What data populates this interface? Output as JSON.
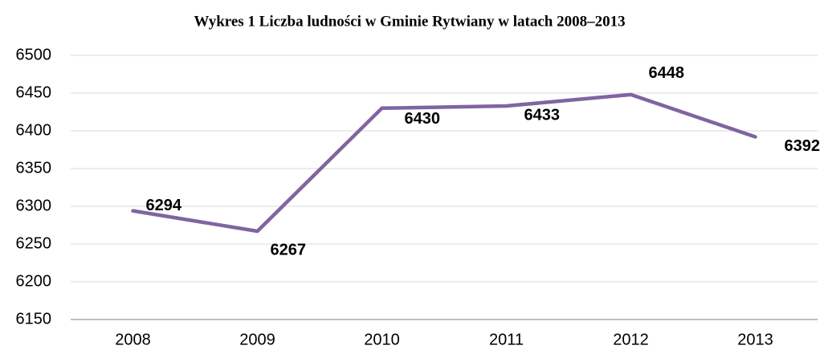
{
  "chart_data": {
    "type": "line",
    "title": "Wykres 1 Liczba ludności w Gminie Rytwiany w latach 2008–2013",
    "categories": [
      "2008",
      "2009",
      "2010",
      "2011",
      "2012",
      "2013"
    ],
    "values": [
      6294,
      6267,
      6430,
      6433,
      6448,
      6392
    ],
    "color": "#8064a2",
    "ylim": [
      6150,
      6500
    ],
    "yticks": [
      6150,
      6200,
      6250,
      6300,
      6350,
      6400,
      6450,
      6500
    ],
    "grid": true
  }
}
